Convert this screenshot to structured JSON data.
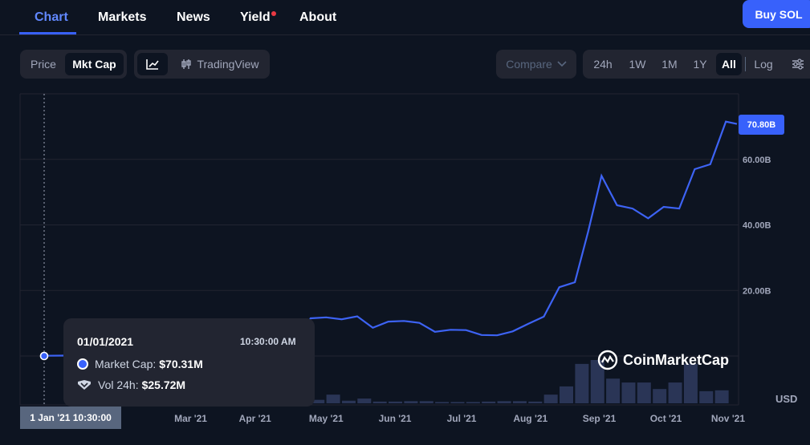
{
  "nav": {
    "tabs": [
      {
        "label": "Chart",
        "active": true
      },
      {
        "label": "Markets"
      },
      {
        "label": "News"
      },
      {
        "label": "Yield",
        "notification": true
      },
      {
        "label": "About"
      }
    ],
    "buy_button": "Buy SOL"
  },
  "controls": {
    "mode": [
      "Price",
      "Mkt Cap"
    ],
    "mode_selected": "Mkt Cap",
    "chart_types": [
      "line-chart-icon",
      "TradingView"
    ],
    "compare": "Compare",
    "ranges": [
      "24h",
      "1W",
      "1M",
      "1Y",
      "All"
    ],
    "range_selected": "All",
    "log": "Log"
  },
  "tooltip": {
    "date": "01/01/2021",
    "time": "10:30:00 AM",
    "market_cap_label": "Market Cap:",
    "market_cap_value": "$70.31M",
    "vol_label": "Vol 24h:",
    "vol_value": "$25.72M"
  },
  "crosshair_label": "1 Jan '21 10:30:00",
  "current_value_label": "70.80B",
  "currency": "USD",
  "watermark": "CoinMarketCap",
  "colors": {
    "background": "#0d1421",
    "line": "#3d63f4",
    "volume": "#2a3556",
    "accent": "#3861fb"
  },
  "chart_data": {
    "type": "line",
    "title": "",
    "xlabel": "",
    "ylabel": "",
    "x_ticks": [
      "Mar '21",
      "Apr '21",
      "May '21",
      "Jun '21",
      "Jul '21",
      "Aug '21",
      "Sep '21",
      "Oct '21",
      "Nov '21"
    ],
    "y_ticks": [
      "20.00B",
      "40.00B",
      "60.00B"
    ],
    "ylim": [
      0,
      80
    ],
    "unit": "B USD",
    "series": [
      {
        "values": [
          [
            "2021-01-01",
            0.07
          ],
          [
            "2021-01-10",
            0.12
          ],
          [
            "2021-01-20",
            0.2
          ],
          [
            "2021-04-20",
            1.2
          ],
          [
            "2021-05-01",
            11.5
          ],
          [
            "2021-05-08",
            11.8
          ],
          [
            "2021-05-15",
            11.2
          ],
          [
            "2021-05-22",
            12.1
          ],
          [
            "2021-05-29",
            8.6
          ],
          [
            "2021-06-05",
            10.5
          ],
          [
            "2021-06-12",
            10.7
          ],
          [
            "2021-06-19",
            10.1
          ],
          [
            "2021-06-26",
            7.4
          ],
          [
            "2021-07-03",
            8.0
          ],
          [
            "2021-07-10",
            7.9
          ],
          [
            "2021-07-17",
            6.4
          ],
          [
            "2021-07-24",
            6.3
          ],
          [
            "2021-07-31",
            7.5
          ],
          [
            "2021-08-07",
            9.8
          ],
          [
            "2021-08-14",
            12.0
          ],
          [
            "2021-08-21",
            21.0
          ],
          [
            "2021-08-28",
            22.5
          ],
          [
            "2021-09-03",
            38.0
          ],
          [
            "2021-09-09",
            55.0
          ],
          [
            "2021-09-16",
            46.0
          ],
          [
            "2021-09-23",
            45.0
          ],
          [
            "2021-09-30",
            42.0
          ],
          [
            "2021-10-07",
            45.5
          ],
          [
            "2021-10-14",
            45.0
          ],
          [
            "2021-10-21",
            57.0
          ],
          [
            "2021-10-28",
            58.5
          ],
          [
            "2021-11-04",
            71.5
          ],
          [
            "2021-11-09",
            70.8
          ]
        ]
      }
    ],
    "volume_relative": [
      [
        "2021-04-20",
        0.03
      ],
      [
        "2021-04-27",
        0.05
      ],
      [
        "2021-05-04",
        0.08
      ],
      [
        "2021-05-11",
        0.2
      ],
      [
        "2021-05-18",
        0.06
      ],
      [
        "2021-05-25",
        0.11
      ],
      [
        "2021-06-01",
        0.04
      ],
      [
        "2021-06-08",
        0.04
      ],
      [
        "2021-06-15",
        0.05
      ],
      [
        "2021-06-22",
        0.05
      ],
      [
        "2021-06-29",
        0.03
      ],
      [
        "2021-07-06",
        0.03
      ],
      [
        "2021-07-13",
        0.03
      ],
      [
        "2021-07-20",
        0.04
      ],
      [
        "2021-07-27",
        0.05
      ],
      [
        "2021-08-03",
        0.05
      ],
      [
        "2021-08-10",
        0.04
      ],
      [
        "2021-08-17",
        0.2
      ],
      [
        "2021-08-24",
        0.39
      ],
      [
        "2021-08-31",
        0.91
      ],
      [
        "2021-09-07",
        1.0
      ],
      [
        "2021-09-14",
        0.57
      ],
      [
        "2021-09-21",
        0.48
      ],
      [
        "2021-09-28",
        0.48
      ],
      [
        "2021-10-05",
        0.33
      ],
      [
        "2021-10-12",
        0.48
      ],
      [
        "2021-10-19",
        0.91
      ],
      [
        "2021-10-26",
        0.28
      ],
      [
        "2021-11-02",
        0.3
      ]
    ]
  }
}
